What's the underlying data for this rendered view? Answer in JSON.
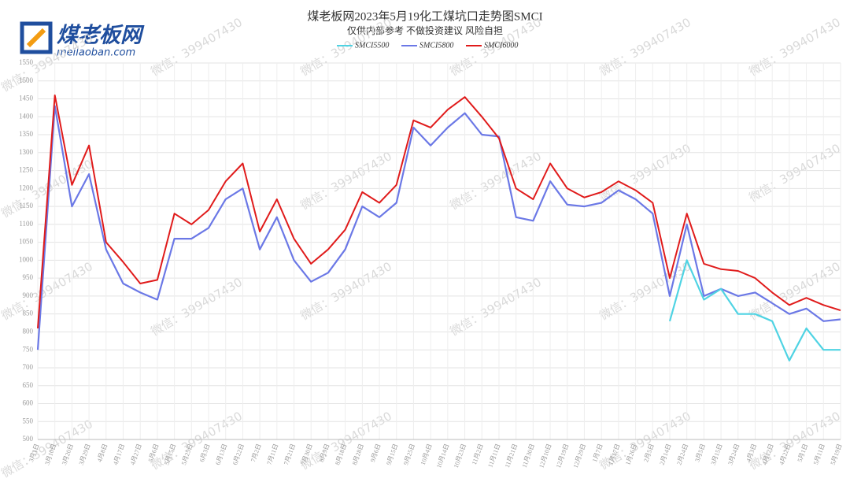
{
  "logo": {
    "name": "煤老板网",
    "url": "meilaoban.com"
  },
  "watermark": "微信：399407430",
  "chart_data": {
    "type": "line",
    "title": "煤老板网2023年5月19化工煤坑口走势图SMCI",
    "subtitle": "仅供内部参考 不做投资建议 风险自担",
    "categories": [
      "3月1日",
      "3月10日",
      "3月20日",
      "3月29日",
      "4月8日",
      "4月17日",
      "4月27日",
      "5月6日",
      "5月15日",
      "5月25日",
      "6月3日",
      "6月13日",
      "6月22日",
      "7月2日",
      "7月11日",
      "7月21日",
      "7月30日",
      "8月9日",
      "8月18日",
      "8月28日",
      "9月6日",
      "9月15日",
      "9月25日",
      "10月4日",
      "10月14日",
      "10月23日",
      "11月2日",
      "11月11日",
      "11月21日",
      "11月30日",
      "12月10日",
      "12月19日",
      "12月29日",
      "1月7日",
      "1月17日",
      "1月26日",
      "2月5日",
      "2月14日",
      "2月24日",
      "3月5日",
      "3月15日",
      "3月24日",
      "4月3日",
      "4月12日",
      "4月22日",
      "5月1日",
      "5月11日",
      "5月19日"
    ],
    "series": [
      {
        "name": "SMCI5500",
        "color": "#4fd3e3",
        "values": [
          null,
          null,
          null,
          null,
          null,
          null,
          null,
          null,
          null,
          null,
          null,
          null,
          null,
          null,
          null,
          null,
          null,
          null,
          null,
          null,
          null,
          null,
          null,
          null,
          null,
          null,
          null,
          null,
          null,
          null,
          null,
          null,
          null,
          null,
          null,
          null,
          null,
          830,
          1000,
          890,
          920,
          850,
          850,
          830,
          720,
          810,
          750,
          750
        ]
      },
      {
        "name": "SMCI5800",
        "color": "#6b78e6",
        "values": [
          750,
          1430,
          1150,
          1240,
          1030,
          935,
          910,
          890,
          1060,
          1060,
          1090,
          1170,
          1200,
          1030,
          1120,
          1000,
          940,
          965,
          1030,
          1150,
          1120,
          1160,
          1370,
          1320,
          1370,
          1410,
          1350,
          1345,
          1120,
          1110,
          1220,
          1155,
          1150,
          1160,
          1195,
          1170,
          1130,
          900,
          1100,
          900,
          920,
          900,
          910,
          880,
          850,
          865,
          830,
          835
        ]
      },
      {
        "name": "SMCI6000",
        "color": "#e01b1b",
        "values": [
          810,
          1460,
          1210,
          1320,
          1050,
          995,
          935,
          945,
          1130,
          1100,
          1140,
          1220,
          1270,
          1080,
          1170,
          1060,
          990,
          1030,
          1085,
          1190,
          1160,
          1210,
          1390,
          1370,
          1420,
          1455,
          1400,
          1340,
          1200,
          1170,
          1270,
          1200,
          1175,
          1190,
          1220,
          1195,
          1160,
          950,
          1130,
          990,
          975,
          970,
          950,
          910,
          875,
          895,
          875,
          860
        ]
      }
    ],
    "ylim": [
      500,
      1550
    ],
    "yticks": [
      500,
      550,
      600,
      650,
      700,
      750,
      800,
      850,
      900,
      950,
      1000,
      1050,
      1100,
      1150,
      1200,
      1250,
      1300,
      1350,
      1400,
      1450,
      1500,
      1550
    ],
    "grid": true
  }
}
